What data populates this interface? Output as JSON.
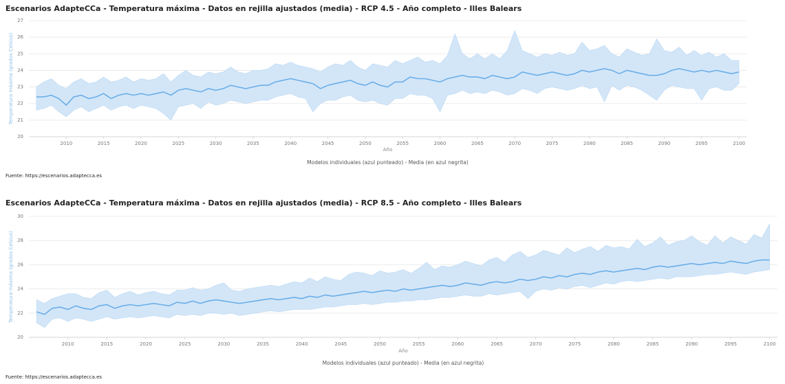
{
  "chart_data": [
    {
      "type": "line",
      "title": "Escenarios AdapteCCa - Temperatura máxima - Datos en rejilla ajustados (media) - RCP 4.5 - Año completo - Illes Balears",
      "xlabel": "Año",
      "ylabel": "Temperatura máxima (grados Celsius)",
      "caption": "Modelos individuales (azul punteado) - Media (en azul negrita)",
      "source": "Fuente: https://escenarios.adaptecca.es",
      "x": [
        2006,
        2007,
        2008,
        2009,
        2010,
        2011,
        2012,
        2013,
        2014,
        2015,
        2016,
        2017,
        2018,
        2019,
        2020,
        2021,
        2022,
        2023,
        2024,
        2025,
        2026,
        2027,
        2028,
        2029,
        2030,
        2031,
        2032,
        2033,
        2034,
        2035,
        2036,
        2037,
        2038,
        2039,
        2040,
        2041,
        2042,
        2043,
        2044,
        2045,
        2046,
        2047,
        2048,
        2049,
        2050,
        2051,
        2052,
        2053,
        2054,
        2055,
        2056,
        2057,
        2058,
        2059,
        2060,
        2061,
        2062,
        2063,
        2064,
        2065,
        2066,
        2067,
        2068,
        2069,
        2070,
        2071,
        2072,
        2073,
        2074,
        2075,
        2076,
        2077,
        2078,
        2079,
        2080,
        2081,
        2082,
        2083,
        2084,
        2085,
        2086,
        2087,
        2088,
        2089,
        2090,
        2091,
        2092,
        2093,
        2094,
        2095,
        2096,
        2097,
        2098,
        2099,
        2100
      ],
      "series": [
        {
          "color": "#6aaee8",
          "values": [
            22.4,
            22.4,
            22.5,
            22.3,
            21.9,
            22.4,
            22.5,
            22.3,
            22.4,
            22.6,
            22.3,
            22.5,
            22.6,
            22.5,
            22.6,
            22.5,
            22.6,
            22.7,
            22.5,
            22.8,
            22.9,
            22.8,
            22.7,
            22.9,
            22.8,
            22.9,
            23.1,
            23.0,
            22.9,
            23.0,
            23.1,
            23.1,
            23.3,
            23.4,
            23.5,
            23.4,
            23.3,
            23.2,
            22.9,
            23.1,
            23.2,
            23.3,
            23.4,
            23.2,
            23.1,
            23.3,
            23.1,
            23.0,
            23.3,
            23.3,
            23.6,
            23.5,
            23.5,
            23.4,
            23.3,
            23.5,
            23.6,
            23.7,
            23.6,
            23.6,
            23.5,
            23.7,
            23.6,
            23.5,
            23.6,
            23.9,
            23.8,
            23.7,
            23.8,
            23.9,
            23.8,
            23.7,
            23.8,
            24.0,
            23.9,
            24.0,
            24.1,
            24.0,
            23.8,
            24.0,
            23.9,
            23.8,
            23.7,
            23.7,
            23.8,
            24.0,
            24.1,
            24.0,
            23.9,
            24.0,
            23.9,
            24.0,
            23.9,
            23.8,
            23.9
          ]
        }
      ],
      "band": {
        "color": "#d3e6f8",
        "high": [
          23.0,
          23.3,
          23.5,
          23.1,
          22.9,
          23.3,
          23.5,
          23.2,
          23.3,
          23.6,
          23.3,
          23.4,
          23.6,
          23.3,
          23.5,
          23.4,
          23.5,
          23.8,
          23.3,
          23.7,
          24.0,
          23.7,
          23.6,
          23.9,
          23.8,
          23.9,
          24.2,
          23.9,
          23.8,
          24.0,
          24.0,
          24.1,
          24.4,
          24.3,
          24.5,
          24.3,
          24.2,
          24.1,
          23.9,
          24.2,
          24.4,
          24.3,
          24.6,
          24.2,
          24.0,
          24.4,
          24.3,
          24.2,
          24.6,
          24.4,
          24.6,
          24.8,
          24.5,
          24.6,
          24.4,
          24.9,
          26.2,
          25.0,
          24.7,
          25.0,
          24.7,
          25.0,
          24.7,
          25.2,
          26.4,
          25.2,
          25.0,
          24.8,
          25.0,
          24.9,
          25.1,
          24.9,
          25.0,
          25.7,
          25.2,
          25.3,
          25.5,
          25.0,
          24.8,
          25.3,
          25.1,
          24.9,
          25.0,
          25.9,
          25.2,
          25.1,
          25.4,
          24.9,
          25.2,
          24.9,
          25.1,
          24.8,
          25.0,
          24.6,
          24.6
        ],
        "low": [
          21.6,
          21.7,
          21.9,
          21.5,
          21.2,
          21.6,
          21.8,
          21.5,
          21.7,
          21.9,
          21.6,
          21.8,
          21.9,
          21.7,
          21.9,
          21.8,
          21.7,
          21.4,
          21.0,
          21.8,
          21.9,
          22.0,
          21.7,
          22.1,
          21.9,
          22.0,
          22.2,
          22.1,
          22.0,
          22.1,
          22.2,
          22.2,
          22.4,
          22.5,
          22.6,
          22.4,
          22.3,
          21.5,
          22.0,
          22.2,
          22.2,
          22.4,
          22.5,
          22.2,
          22.1,
          22.2,
          22.0,
          21.9,
          22.3,
          22.3,
          22.6,
          22.5,
          22.5,
          22.3,
          21.5,
          22.5,
          22.6,
          22.8,
          22.6,
          22.7,
          22.6,
          22.8,
          22.7,
          22.5,
          22.6,
          22.9,
          22.8,
          22.6,
          22.9,
          23.0,
          22.9,
          22.8,
          22.9,
          23.1,
          22.9,
          23.0,
          22.1,
          23.1,
          22.8,
          23.1,
          23.0,
          22.8,
          22.5,
          22.2,
          22.8,
          23.1,
          23.0,
          22.9,
          22.9,
          22.2,
          22.9,
          23.0,
          22.8,
          22.8,
          23.2
        ]
      },
      "xlim": [
        2005,
        2101
      ],
      "xticks": [
        2010,
        2015,
        2020,
        2025,
        2030,
        2035,
        2040,
        2045,
        2050,
        2055,
        2060,
        2065,
        2070,
        2075,
        2080,
        2085,
        2090,
        2095,
        2100
      ],
      "ylim": [
        20,
        27
      ],
      "yticks": [
        20,
        21,
        22,
        23,
        24,
        25,
        26,
        27
      ],
      "grid": true
    },
    {
      "type": "line",
      "title": "Escenarios AdapteCCa - Temperatura máxima - Datos en rejilla ajustados (media) - RCP 8.5 - Año completo - Illes Balears",
      "xlabel": "Año",
      "ylabel": "Temperatura máxima (grados Celsius)",
      "caption": "Modelos individuales (azul punteado) - Media (en azul negrita)",
      "source": "Fuente: https://escenarios.adaptecca.es",
      "x": [
        2006,
        2007,
        2008,
        2009,
        2010,
        2011,
        2012,
        2013,
        2014,
        2015,
        2016,
        2017,
        2018,
        2019,
        2020,
        2021,
        2022,
        2023,
        2024,
        2025,
        2026,
        2027,
        2028,
        2029,
        2030,
        2031,
        2032,
        2033,
        2034,
        2035,
        2036,
        2037,
        2038,
        2039,
        2040,
        2041,
        2042,
        2043,
        2044,
        2045,
        2046,
        2047,
        2048,
        2049,
        2050,
        2051,
        2052,
        2053,
        2054,
        2055,
        2056,
        2057,
        2058,
        2059,
        2060,
        2061,
        2062,
        2063,
        2064,
        2065,
        2066,
        2067,
        2068,
        2069,
        2070,
        2071,
        2072,
        2073,
        2074,
        2075,
        2076,
        2077,
        2078,
        2079,
        2080,
        2081,
        2082,
        2083,
        2084,
        2085,
        2086,
        2087,
        2088,
        2089,
        2090,
        2091,
        2092,
        2093,
        2094,
        2095,
        2096,
        2097,
        2098,
        2099,
        2100
      ],
      "series": [
        {
          "color": "#6aaee8",
          "values": [
            22.1,
            21.9,
            22.4,
            22.5,
            22.3,
            22.6,
            22.4,
            22.3,
            22.6,
            22.7,
            22.4,
            22.6,
            22.7,
            22.6,
            22.7,
            22.8,
            22.7,
            22.6,
            22.9,
            22.8,
            23.0,
            22.8,
            23.0,
            23.1,
            23.0,
            22.9,
            22.8,
            22.9,
            23.0,
            23.1,
            23.2,
            23.1,
            23.2,
            23.3,
            23.2,
            23.4,
            23.3,
            23.5,
            23.4,
            23.5,
            23.6,
            23.7,
            23.8,
            23.7,
            23.8,
            23.9,
            23.8,
            24.0,
            23.9,
            24.0,
            24.1,
            24.2,
            24.3,
            24.2,
            24.3,
            24.5,
            24.4,
            24.3,
            24.5,
            24.6,
            24.5,
            24.6,
            24.8,
            24.7,
            24.8,
            25.0,
            24.9,
            25.1,
            25.0,
            25.2,
            25.3,
            25.2,
            25.4,
            25.5,
            25.4,
            25.5,
            25.6,
            25.7,
            25.6,
            25.8,
            25.9,
            25.8,
            25.9,
            26.0,
            26.1,
            26.0,
            26.1,
            26.2,
            26.1,
            26.3,
            26.2,
            26.1,
            26.3,
            26.4,
            26.4
          ]
        }
      ],
      "band": {
        "color": "#d3e6f8",
        "high": [
          23.1,
          22.8,
          23.2,
          23.4,
          23.6,
          23.6,
          23.3,
          23.2,
          23.7,
          23.9,
          23.3,
          23.6,
          23.8,
          23.5,
          23.7,
          23.8,
          23.6,
          23.5,
          23.9,
          23.9,
          24.1,
          23.9,
          24.0,
          24.3,
          24.5,
          23.9,
          23.8,
          24.0,
          24.1,
          24.2,
          24.3,
          24.2,
          24.4,
          24.6,
          24.5,
          24.9,
          24.6,
          25.0,
          24.8,
          24.7,
          25.2,
          25.4,
          25.3,
          25.1,
          25.5,
          25.3,
          25.4,
          25.6,
          25.3,
          25.7,
          26.2,
          25.6,
          25.9,
          25.8,
          26.0,
          26.3,
          26.1,
          25.9,
          26.4,
          26.6,
          26.2,
          26.8,
          27.1,
          26.6,
          26.8,
          27.2,
          27.0,
          26.8,
          27.4,
          27.0,
          27.3,
          27.5,
          27.1,
          27.6,
          27.4,
          27.5,
          27.3,
          28.1,
          27.5,
          27.8,
          28.3,
          27.6,
          27.9,
          28.0,
          28.4,
          27.9,
          27.6,
          28.4,
          27.8,
          28.3,
          28.0,
          27.7,
          28.5,
          28.2,
          29.4
        ],
        "low": [
          21.2,
          20.8,
          21.5,
          21.6,
          21.3,
          21.6,
          21.5,
          21.3,
          21.5,
          21.7,
          21.5,
          21.6,
          21.7,
          21.6,
          21.7,
          21.8,
          21.7,
          21.6,
          21.9,
          21.8,
          21.9,
          21.8,
          22.0,
          22.0,
          21.9,
          22.0,
          21.8,
          21.9,
          22.0,
          22.1,
          22.2,
          22.1,
          22.2,
          22.3,
          22.3,
          22.3,
          22.4,
          22.5,
          22.5,
          22.6,
          22.7,
          22.7,
          22.8,
          22.7,
          22.8,
          22.9,
          22.9,
          23.0,
          23.0,
          23.1,
          23.1,
          23.2,
          23.3,
          23.3,
          23.4,
          23.5,
          23.4,
          23.4,
          23.6,
          23.5,
          23.6,
          23.7,
          23.8,
          23.2,
          23.8,
          24.0,
          23.9,
          24.1,
          24.0,
          24.2,
          24.3,
          24.1,
          24.3,
          24.5,
          24.4,
          24.6,
          24.7,
          24.6,
          24.7,
          24.8,
          24.9,
          24.8,
          25.0,
          25.0,
          25.0,
          25.1,
          25.2,
          25.2,
          25.3,
          25.4,
          25.3,
          25.2,
          25.4,
          25.5,
          25.6
        ]
      },
      "xlim": [
        2005,
        2101
      ],
      "xticks": [
        2010,
        2015,
        2020,
        2025,
        2030,
        2035,
        2040,
        2045,
        2050,
        2055,
        2060,
        2065,
        2070,
        2075,
        2080,
        2085,
        2090,
        2095,
        2100
      ],
      "ylim": [
        20,
        30
      ],
      "yticks": [
        20,
        22,
        24,
        26,
        28,
        30
      ],
      "grid": true
    }
  ]
}
